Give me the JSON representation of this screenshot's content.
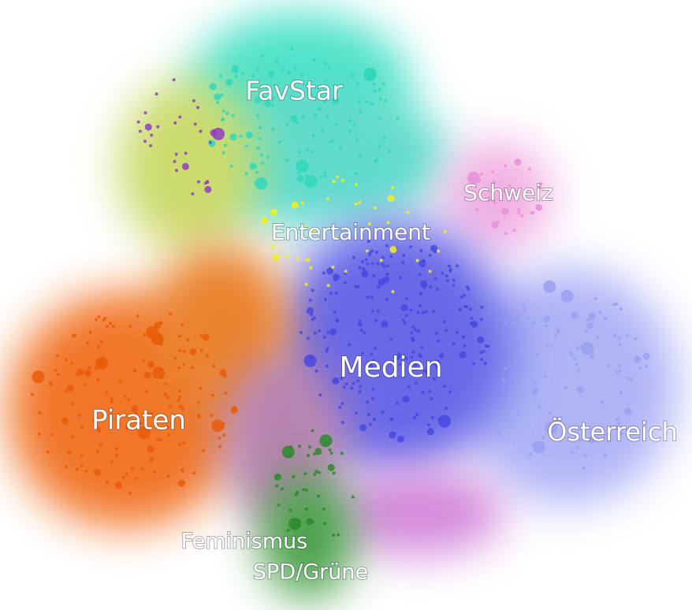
{
  "clusters": [
    {
      "label": "FavStar"
    },
    {
      "label": "Schweiz"
    },
    {
      "label": "Entertainment"
    },
    {
      "label": "Medien"
    },
    {
      "label": "Piraten"
    },
    {
      "label": "Österreich"
    },
    {
      "label": "Feminismus"
    },
    {
      "label": "SPD/Grüne"
    }
  ]
}
